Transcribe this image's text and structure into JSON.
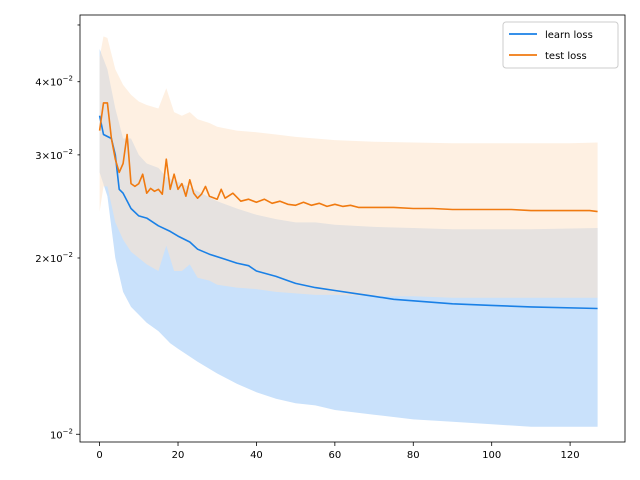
{
  "chart_data": {
    "type": "line",
    "title": "",
    "xlabel": "",
    "ylabel": "",
    "yscale": "log",
    "xlim": [
      -5,
      134
    ],
    "ylim": [
      0.0097,
      0.052
    ],
    "x_ticks": [
      0,
      20,
      40,
      60,
      80,
      100,
      120
    ],
    "y_ticks": [
      {
        "value": 0.01,
        "base": "10",
        "exp": "−2",
        "mant": ""
      },
      {
        "value": 0.02,
        "base": "10",
        "exp": "−2",
        "mant": "2"
      },
      {
        "value": 0.03,
        "base": "10",
        "exp": "−2",
        "mant": "3"
      },
      {
        "value": 0.04,
        "base": "10",
        "exp": "−2",
        "mant": "4"
      }
    ],
    "grid": false,
    "legend_position": "top-right",
    "series": [
      {
        "name": "learn loss",
        "color": "#1f77b4",
        "line_color": "#1a80e6",
        "band_color": "#c9e1fb",
        "points": [
          [
            0,
            0.035
          ],
          [
            1,
            0.0325
          ],
          [
            3,
            0.032
          ],
          [
            4,
            0.03
          ],
          [
            5,
            0.0262
          ],
          [
            6,
            0.0258
          ],
          [
            8,
            0.0243
          ],
          [
            10,
            0.0236
          ],
          [
            12,
            0.0234
          ],
          [
            15,
            0.0227
          ],
          [
            18,
            0.0222
          ],
          [
            20,
            0.0218
          ],
          [
            23,
            0.0213
          ],
          [
            25,
            0.0207
          ],
          [
            28,
            0.0203
          ],
          [
            32,
            0.0199
          ],
          [
            35,
            0.0196
          ],
          [
            38,
            0.0194
          ],
          [
            40,
            0.019
          ],
          [
            45,
            0.0186
          ],
          [
            48,
            0.0183
          ],
          [
            50,
            0.0181
          ],
          [
            55,
            0.0178
          ],
          [
            60,
            0.0176
          ],
          [
            65,
            0.0174
          ],
          [
            70,
            0.0172
          ],
          [
            75,
            0.017
          ],
          [
            80,
            0.0169
          ],
          [
            90,
            0.0167
          ],
          [
            100,
            0.0166
          ],
          [
            110,
            0.0165
          ],
          [
            127,
            0.0164
          ]
        ],
        "band_upper": [
          [
            0,
            0.0455
          ],
          [
            2,
            0.042
          ],
          [
            4,
            0.036
          ],
          [
            6,
            0.032
          ],
          [
            8,
            0.032
          ],
          [
            10,
            0.03
          ],
          [
            12,
            0.029
          ],
          [
            15,
            0.0285
          ],
          [
            17,
            0.0275
          ],
          [
            20,
            0.027
          ],
          [
            25,
            0.026
          ],
          [
            30,
            0.025
          ],
          [
            35,
            0.0243
          ],
          [
            40,
            0.0237
          ],
          [
            45,
            0.0233
          ],
          [
            50,
            0.023
          ],
          [
            55,
            0.023
          ],
          [
            60,
            0.0228
          ],
          [
            70,
            0.0226
          ],
          [
            80,
            0.0225
          ],
          [
            90,
            0.0224
          ],
          [
            100,
            0.0224
          ],
          [
            110,
            0.0224
          ],
          [
            127,
            0.0225
          ]
        ],
        "band_lower": [
          [
            0,
            0.028
          ],
          [
            2,
            0.0255
          ],
          [
            4,
            0.02
          ],
          [
            6,
            0.0175
          ],
          [
            8,
            0.0165
          ],
          [
            10,
            0.016
          ],
          [
            12,
            0.0155
          ],
          [
            15,
            0.015
          ],
          [
            18,
            0.0143
          ],
          [
            20,
            0.014
          ],
          [
            25,
            0.0133
          ],
          [
            30,
            0.0127
          ],
          [
            35,
            0.0122
          ],
          [
            40,
            0.0118
          ],
          [
            45,
            0.0115
          ],
          [
            50,
            0.0113
          ],
          [
            55,
            0.0112
          ],
          [
            60,
            0.011
          ],
          [
            70,
            0.0108
          ],
          [
            80,
            0.0106
          ],
          [
            90,
            0.0105
          ],
          [
            100,
            0.0104
          ],
          [
            110,
            0.0103
          ],
          [
            127,
            0.0103
          ]
        ]
      },
      {
        "name": "test loss",
        "color": "#ff7f0e",
        "line_color": "#f07a10",
        "band_color": "#fde3cb",
        "points": [
          [
            0,
            0.033
          ],
          [
            1,
            0.0368
          ],
          [
            2,
            0.0368
          ],
          [
            3,
            0.032
          ],
          [
            4,
            0.0295
          ],
          [
            5,
            0.028
          ],
          [
            6,
            0.029
          ],
          [
            7,
            0.0325
          ],
          [
            8,
            0.0268
          ],
          [
            9,
            0.0265
          ],
          [
            10,
            0.0268
          ],
          [
            11,
            0.0278
          ],
          [
            12,
            0.0258
          ],
          [
            13,
            0.0263
          ],
          [
            14,
            0.026
          ],
          [
            15,
            0.0262
          ],
          [
            16,
            0.0257
          ],
          [
            17,
            0.0295
          ],
          [
            18,
            0.0262
          ],
          [
            19,
            0.0278
          ],
          [
            20,
            0.0262
          ],
          [
            21,
            0.0268
          ],
          [
            22,
            0.0255
          ],
          [
            23,
            0.0272
          ],
          [
            24,
            0.0258
          ],
          [
            25,
            0.0253
          ],
          [
            26,
            0.0257
          ],
          [
            27,
            0.0265
          ],
          [
            28,
            0.0255
          ],
          [
            30,
            0.0252
          ],
          [
            31,
            0.0262
          ],
          [
            32,
            0.0253
          ],
          [
            34,
            0.0258
          ],
          [
            36,
            0.025
          ],
          [
            38,
            0.0252
          ],
          [
            40,
            0.0249
          ],
          [
            42,
            0.0252
          ],
          [
            44,
            0.0248
          ],
          [
            46,
            0.025
          ],
          [
            48,
            0.0247
          ],
          [
            50,
            0.0246
          ],
          [
            52,
            0.0249
          ],
          [
            54,
            0.0246
          ],
          [
            56,
            0.0248
          ],
          [
            58,
            0.0245
          ],
          [
            60,
            0.0247
          ],
          [
            62,
            0.0245
          ],
          [
            64,
            0.0246
          ],
          [
            66,
            0.0244
          ],
          [
            70,
            0.0244
          ],
          [
            75,
            0.0244
          ],
          [
            80,
            0.0243
          ],
          [
            85,
            0.0243
          ],
          [
            90,
            0.0242
          ],
          [
            95,
            0.0242
          ],
          [
            100,
            0.0242
          ],
          [
            105,
            0.0242
          ],
          [
            110,
            0.0241
          ],
          [
            115,
            0.0241
          ],
          [
            120,
            0.0241
          ],
          [
            125,
            0.0241
          ],
          [
            127,
            0.024
          ]
        ],
        "band_upper": [
          [
            0,
            0.044
          ],
          [
            1,
            0.0478
          ],
          [
            2,
            0.0475
          ],
          [
            4,
            0.042
          ],
          [
            6,
            0.0395
          ],
          [
            8,
            0.038
          ],
          [
            10,
            0.037
          ],
          [
            12,
            0.0365
          ],
          [
            15,
            0.036
          ],
          [
            17,
            0.039
          ],
          [
            19,
            0.0355
          ],
          [
            21,
            0.035
          ],
          [
            23,
            0.0355
          ],
          [
            25,
            0.0345
          ],
          [
            28,
            0.034
          ],
          [
            30,
            0.0335
          ],
          [
            35,
            0.033
          ],
          [
            40,
            0.0328
          ],
          [
            45,
            0.0325
          ],
          [
            50,
            0.0322
          ],
          [
            55,
            0.032
          ],
          [
            60,
            0.0318
          ],
          [
            70,
            0.0316
          ],
          [
            80,
            0.0315
          ],
          [
            90,
            0.0314
          ],
          [
            100,
            0.0314
          ],
          [
            110,
            0.0314
          ],
          [
            120,
            0.0314
          ],
          [
            127,
            0.0315
          ]
        ],
        "band_lower": [
          [
            0,
            0.024
          ],
          [
            1,
            0.0265
          ],
          [
            2,
            0.0265
          ],
          [
            4,
            0.023
          ],
          [
            6,
            0.0215
          ],
          [
            8,
            0.0205
          ],
          [
            10,
            0.02
          ],
          [
            12,
            0.0195
          ],
          [
            15,
            0.019
          ],
          [
            17,
            0.021
          ],
          [
            19,
            0.019
          ],
          [
            21,
            0.019
          ],
          [
            23,
            0.0195
          ],
          [
            25,
            0.0185
          ],
          [
            28,
            0.0183
          ],
          [
            30,
            0.018
          ],
          [
            35,
            0.0178
          ],
          [
            40,
            0.0177
          ],
          [
            45,
            0.0175
          ],
          [
            50,
            0.0174
          ],
          [
            55,
            0.0173
          ],
          [
            60,
            0.0173
          ],
          [
            70,
            0.0172
          ],
          [
            80,
            0.0172
          ],
          [
            90,
            0.0171
          ],
          [
            100,
            0.0171
          ],
          [
            110,
            0.0171
          ],
          [
            120,
            0.0171
          ],
          [
            127,
            0.0171
          ]
        ]
      }
    ]
  }
}
